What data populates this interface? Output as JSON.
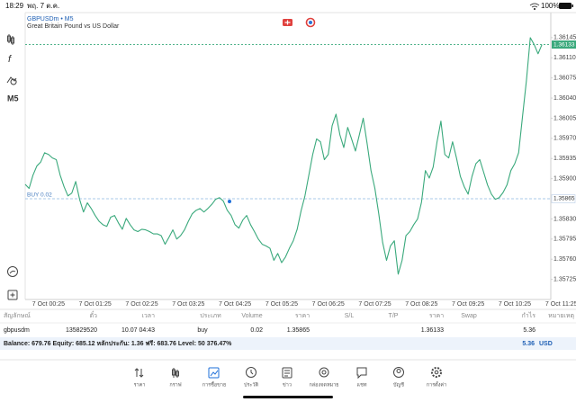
{
  "status_bar": {
    "time": "18:29",
    "date": "พฤ. 7 ต.ค.",
    "battery": "100%"
  },
  "toolbar": {
    "timeframe": "M5"
  },
  "chart_data": {
    "type": "line",
    "title": "GBPUSDm • M5",
    "description": "Great Britain Pound vs US Dollar",
    "categories": [
      null,
      null,
      null,
      null,
      null,
      null,
      "7 Oct 00:25",
      null,
      null,
      null,
      null,
      null,
      null,
      null,
      null,
      null,
      null,
      null,
      "7 Oct 01:25",
      null,
      null,
      null,
      null,
      null,
      null,
      null,
      null,
      null,
      null,
      null,
      "7 Oct 02:25",
      null,
      null,
      null,
      null,
      null,
      null,
      null,
      null,
      null,
      null,
      null,
      "7 Oct 03:25",
      null,
      null,
      null,
      null,
      null,
      null,
      null,
      null,
      null,
      null,
      null,
      "7 Oct 04:25",
      null,
      null,
      null,
      null,
      null,
      null,
      null,
      null,
      null,
      null,
      null,
      "7 Oct 05:25",
      null,
      null,
      null,
      null,
      null,
      null,
      null,
      null,
      null,
      null,
      null,
      "7 Oct 06:25",
      null,
      null,
      null,
      null,
      null,
      null,
      null,
      null,
      null,
      null,
      null,
      "7 Oct 07:25",
      null,
      null,
      null,
      null,
      null,
      null,
      null,
      null,
      null,
      null,
      null,
      "7 Oct 08:25",
      null,
      null,
      null,
      null,
      null,
      null,
      null,
      null,
      null,
      null,
      null,
      "7 Oct 09:25",
      null,
      null,
      null,
      null,
      null,
      null,
      null,
      null,
      null,
      null,
      null,
      "7 Oct 10:25",
      null,
      null,
      null,
      null,
      null,
      null,
      null,
      null,
      null,
      null,
      null,
      "7 Oct 11:25"
    ],
    "values": [
      1.3589,
      1.35883,
      1.35906,
      1.35922,
      1.35929,
      1.35945,
      1.35942,
      1.35936,
      1.35933,
      1.35906,
      1.35886,
      1.3587,
      1.35875,
      1.35895,
      1.35864,
      1.35842,
      1.35858,
      1.35848,
      1.35836,
      1.35826,
      1.3582,
      1.35817,
      1.35833,
      1.35836,
      1.35823,
      1.35812,
      1.35831,
      1.3582,
      1.35811,
      1.35808,
      1.35812,
      1.35811,
      1.35808,
      1.35804,
      1.35804,
      1.35801,
      1.35786,
      1.35798,
      1.35811,
      1.35795,
      1.35801,
      1.35811,
      1.35826,
      1.35839,
      1.35845,
      1.35848,
      1.35842,
      1.35848,
      1.35855,
      1.35864,
      1.35867,
      1.35861,
      1.35845,
      1.35836,
      1.3582,
      1.35814,
      1.35828,
      1.35836,
      1.3582,
      1.35808,
      1.35795,
      1.35786,
      1.35783,
      1.35779,
      1.35758,
      1.3577,
      1.35754,
      1.35764,
      1.35779,
      1.35792,
      1.35812,
      1.35844,
      1.3587,
      1.35906,
      1.35942,
      1.35969,
      1.35964,
      1.35933,
      1.35942,
      1.35992,
      1.36012,
      1.35976,
      1.35954,
      1.35989,
      1.35969,
      1.35948,
      1.35976,
      1.36005,
      1.35961,
      1.35914,
      1.35883,
      1.35839,
      1.35789,
      1.35758,
      1.35783,
      1.35792,
      1.35734,
      1.35758,
      1.35801,
      1.35808,
      1.3582,
      1.3583,
      1.35859,
      1.35914,
      1.35901,
      1.3592,
      1.35964,
      1.36,
      1.35942,
      1.35936,
      1.35964,
      1.35936,
      1.35904,
      1.35886,
      1.35873,
      1.35904,
      1.35926,
      1.35933,
      1.35911,
      1.35889,
      1.35873,
      1.35864,
      1.35867,
      1.35876,
      1.35889,
      1.35914,
      1.35926,
      1.35945,
      1.36008,
      1.3607,
      1.36145,
      1.36133,
      1.36117,
      1.36133,
      null,
      null,
      null,
      null,
      null
    ],
    "color": "#3aa97c",
    "ylim": [
      1.3569,
      1.36187
    ],
    "yticks": [
      1.36145,
      {
        "value": 1.3611,
        "label": "1.36110"
      },
      1.36075,
      {
        "value": 1.3604,
        "label": "1.36040"
      },
      1.36005,
      {
        "value": 1.3597,
        "label": "1.35970"
      },
      1.35935,
      {
        "value": 1.359,
        "label": "1.35900"
      },
      {
        "value": 1.3583,
        "label": "1.35830"
      },
      1.35795,
      {
        "value": 1.3576,
        "label": "1.35760"
      },
      1.35725
    ],
    "grid": false,
    "current_price": 1.36133,
    "position": {
      "label": "BUY 0.02",
      "price": 1.35865
    }
  },
  "table": {
    "headers": [
      "สัญลักษณ์",
      "ตั๋ว",
      "เวลา",
      "ประเภท",
      "Volume",
      "ราคา",
      "S/L",
      "T/P",
      "ราคา",
      "Swap",
      "กำไร",
      "หมายเหตุ"
    ],
    "rows": [
      [
        "gbpusdm",
        "135829520",
        "10.07 04:43",
        "buy",
        "0.02",
        "1.35865",
        null,
        null,
        "1.36133",
        null,
        "5.36",
        null
      ]
    ]
  },
  "account": {
    "summary": "Balance: 679.76 Equity: 685.12 หลักประกัน: 1.36 ฟรี: 683.76 Level: 50 376.47%",
    "profit": "5.36",
    "currency": "USD"
  },
  "nav": [
    "ราคา",
    "กราฟ",
    "การซื้อขาย",
    "ประวัติ",
    "ข่าว",
    "กล่องจดหมาย",
    "แชท",
    "บัญชี",
    "การตั้งค่า"
  ]
}
